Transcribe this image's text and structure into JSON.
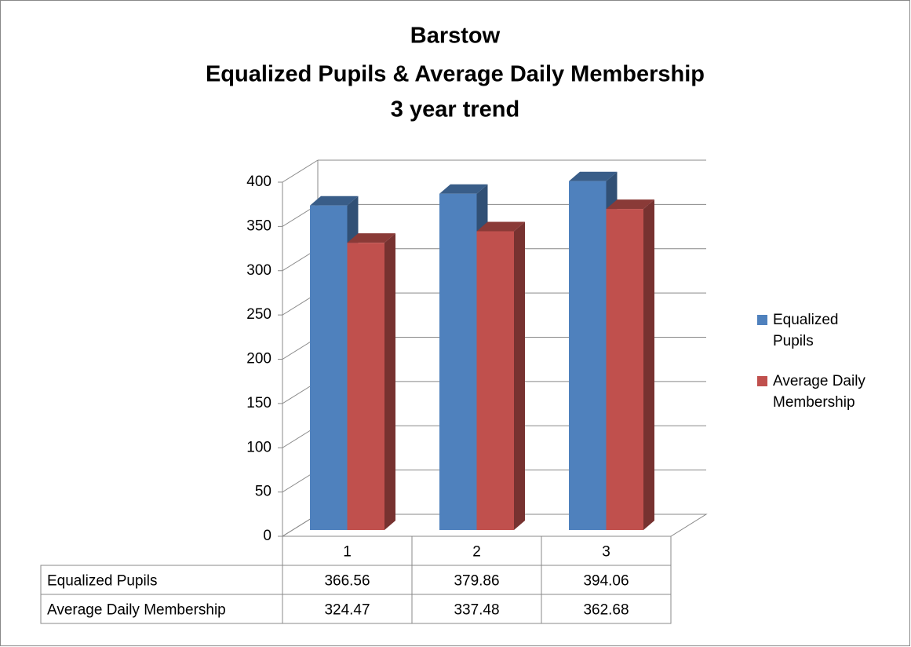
{
  "chart_data": {
    "type": "bar3d",
    "title": [
      "Barstow",
      "Equalized Pupils & Average Daily Membership",
      "3 year trend"
    ],
    "categories": [
      "1",
      "2",
      "3"
    ],
    "series": [
      {
        "name": "Equalized Pupils",
        "color": "#4f81bd",
        "values": [
          366.56,
          379.86,
          394.06
        ]
      },
      {
        "name": "Average Daily Membership",
        "color": "#c0504d",
        "values": [
          324.47,
          337.48,
          362.68
        ]
      }
    ],
    "ylim": [
      0,
      400
    ],
    "yticks": [
      0,
      50,
      100,
      150,
      200,
      250,
      300,
      350,
      400
    ],
    "grid": true,
    "legend": "right",
    "data_table": true
  }
}
